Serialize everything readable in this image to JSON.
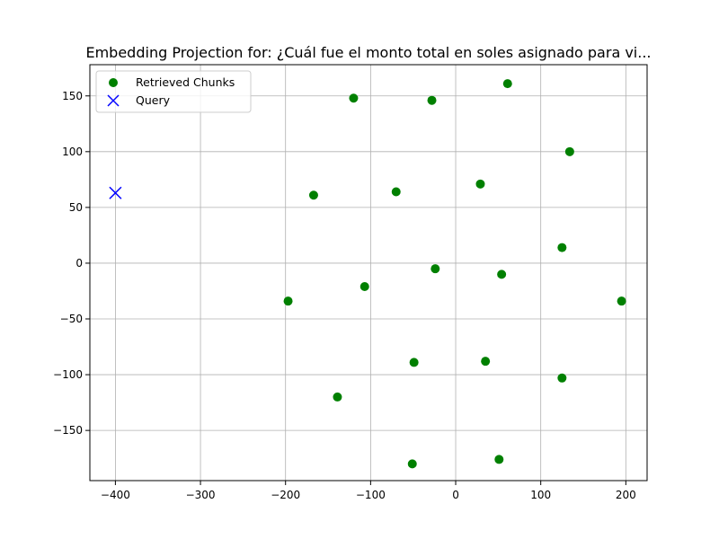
{
  "chart_data": {
    "type": "scatter",
    "title": "Embedding Projection for: ¿Cuál fue el monto total en soles asignado para vi...",
    "xlabel": "",
    "ylabel": "",
    "xlim": [
      -430,
      225
    ],
    "ylim": [
      -195,
      178
    ],
    "x_ticks": [
      -400,
      -300,
      -200,
      -100,
      0,
      100,
      200
    ],
    "y_ticks": [
      -150,
      -100,
      -50,
      0,
      50,
      100,
      150
    ],
    "x_tick_labels": [
      "−400",
      "−300",
      "−200",
      "−100",
      "0",
      "100",
      "200"
    ],
    "y_tick_labels": [
      "−150",
      "−100",
      "−50",
      "0",
      "50",
      "100",
      "150"
    ],
    "grid": true,
    "legend_position": "top-left",
    "series": [
      {
        "name": "Retrieved Chunks",
        "marker": "circle",
        "color": "#008000",
        "points": [
          {
            "x": -120,
            "y": 148
          },
          {
            "x": -28,
            "y": 146
          },
          {
            "x": 61,
            "y": 161
          },
          {
            "x": 134,
            "y": 100
          },
          {
            "x": -167,
            "y": 61
          },
          {
            "x": -70,
            "y": 64
          },
          {
            "x": 29,
            "y": 71
          },
          {
            "x": 125,
            "y": 14
          },
          {
            "x": -24,
            "y": -5
          },
          {
            "x": 54,
            "y": -10
          },
          {
            "x": -197,
            "y": -34
          },
          {
            "x": -107,
            "y": -21
          },
          {
            "x": 195,
            "y": -34
          },
          {
            "x": -49,
            "y": -89
          },
          {
            "x": 35,
            "y": -88
          },
          {
            "x": 125,
            "y": -103
          },
          {
            "x": -139,
            "y": -120
          },
          {
            "x": -51,
            "y": -180
          },
          {
            "x": 51,
            "y": -176
          }
        ]
      },
      {
        "name": "Query",
        "marker": "x",
        "color": "#0000ff",
        "points": [
          {
            "x": -400,
            "y": 63
          }
        ]
      }
    ]
  }
}
